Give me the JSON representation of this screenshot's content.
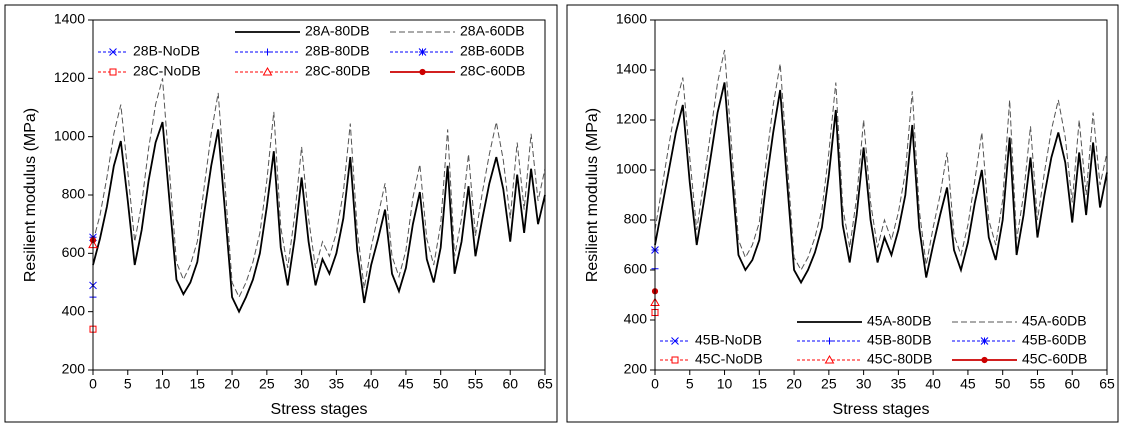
{
  "chart_data": [
    {
      "type": "line",
      "xlabel": "Stress stages",
      "ylabel": "Resilient modulus (MPa)",
      "xlim": [
        0,
        65
      ],
      "xticks": [
        0,
        5,
        10,
        15,
        20,
        25,
        30,
        35,
        40,
        45,
        50,
        55,
        60,
        65
      ],
      "ylim": [
        200,
        1400
      ],
      "yticks": [
        200,
        400,
        600,
        800,
        1000,
        1200,
        1400
      ],
      "legend_position": "top",
      "series": [
        {
          "name": "28A-80DB",
          "color": "#000000",
          "dash": false,
          "marker": "none",
          "x": [
            0,
            1,
            2,
            3,
            4,
            5,
            6,
            7,
            8,
            9,
            10,
            11,
            12,
            13,
            14,
            15,
            16,
            17,
            18,
            19,
            20,
            21,
            22,
            23,
            24,
            25,
            26,
            27,
            28,
            29,
            30,
            31,
            32,
            33,
            34,
            35,
            36,
            37,
            38,
            39,
            40,
            41,
            42,
            43,
            44,
            45,
            46,
            47,
            48,
            49,
            50,
            51,
            52,
            53,
            54,
            55,
            56,
            57,
            58,
            59,
            60,
            61,
            62,
            63,
            64,
            65
          ],
          "values": [
            560,
            650,
            760,
            900,
            985,
            780,
            560,
            680,
            850,
            980,
            1050,
            780,
            510,
            460,
            500,
            570,
            740,
            900,
            1025,
            740,
            450,
            400,
            450,
            510,
            600,
            760,
            950,
            620,
            490,
            650,
            860,
            640,
            490,
            580,
            530,
            600,
            720,
            930,
            610,
            430,
            560,
            650,
            750,
            530,
            470,
            550,
            700,
            810,
            580,
            500,
            620,
            900,
            530,
            640,
            830,
            590,
            720,
            840,
            930,
            820,
            640,
            870,
            670,
            890,
            700,
            800
          ]
        },
        {
          "name": "28A-60DB",
          "color": "#555555",
          "dash": true,
          "marker": "none",
          "x": [
            0,
            1,
            2,
            3,
            4,
            5,
            6,
            7,
            8,
            9,
            10,
            11,
            12,
            13,
            14,
            15,
            16,
            17,
            18,
            19,
            20,
            21,
            22,
            23,
            24,
            25,
            26,
            27,
            28,
            29,
            30,
            31,
            32,
            33,
            34,
            35,
            36,
            37,
            38,
            39,
            40,
            41,
            42,
            43,
            44,
            45,
            46,
            47,
            48,
            49,
            50,
            51,
            52,
            53,
            54,
            55,
            56,
            57,
            58,
            59,
            60,
            61,
            62,
            63,
            64,
            65
          ],
          "values": [
            640,
            730,
            860,
            1010,
            1110,
            880,
            640,
            770,
            960,
            1110,
            1200,
            880,
            570,
            510,
            560,
            640,
            830,
            1010,
            1150,
            830,
            500,
            450,
            500,
            570,
            670,
            850,
            1085,
            690,
            550,
            730,
            965,
            720,
            550,
            640,
            590,
            670,
            810,
            1045,
            680,
            480,
            620,
            730,
            840,
            590,
            520,
            610,
            790,
            905,
            650,
            560,
            700,
            1025,
            590,
            720,
            940,
            660,
            810,
            940,
            1050,
            920,
            720,
            980,
            750,
            1010,
            780,
            890
          ]
        },
        {
          "name": "28B-NoDB",
          "color": "#0000ff",
          "dash": true,
          "marker": "x",
          "x": [
            0
          ],
          "values": [
            490
          ]
        },
        {
          "name": "28B-80DB",
          "color": "#0000ff",
          "dash": true,
          "marker": "plus",
          "x": [
            0
          ],
          "values": [
            450
          ]
        },
        {
          "name": "28B-60DB",
          "color": "#0000ff",
          "dash": true,
          "marker": "star",
          "x": [
            0
          ],
          "values": [
            655
          ]
        },
        {
          "name": "28C-NoDB",
          "color": "#ff0000",
          "dash": true,
          "marker": "square",
          "x": [
            0
          ],
          "values": [
            340
          ]
        },
        {
          "name": "28C-80DB",
          "color": "#ff0000",
          "dash": true,
          "marker": "triangle",
          "x": [
            0
          ],
          "values": [
            630
          ]
        },
        {
          "name": "28C-60DB",
          "color": "#cc0000",
          "dash": false,
          "marker": "circle",
          "x": [
            0
          ],
          "values": [
            645
          ]
        }
      ]
    },
    {
      "type": "line",
      "xlabel": "Stress stages",
      "ylabel": "Resilient modulus (MPa)",
      "xlim": [
        0,
        65
      ],
      "xticks": [
        0,
        5,
        10,
        15,
        20,
        25,
        30,
        35,
        40,
        45,
        50,
        55,
        60,
        65
      ],
      "ylim": [
        200,
        1600
      ],
      "yticks": [
        200,
        400,
        600,
        800,
        1000,
        1200,
        1400,
        1600
      ],
      "legend_position": "bottom",
      "series": [
        {
          "name": "45A-80DB",
          "color": "#000000",
          "dash": false,
          "marker": "none",
          "x": [
            0,
            1,
            2,
            3,
            4,
            5,
            6,
            7,
            8,
            9,
            10,
            11,
            12,
            13,
            14,
            15,
            16,
            17,
            18,
            19,
            20,
            21,
            22,
            23,
            24,
            25,
            26,
            27,
            28,
            29,
            30,
            31,
            32,
            33,
            34,
            35,
            36,
            37,
            38,
            39,
            40,
            41,
            42,
            43,
            44,
            45,
            46,
            47,
            48,
            49,
            50,
            51,
            52,
            53,
            54,
            55,
            56,
            57,
            58,
            59,
            60,
            61,
            62,
            63,
            64,
            65
          ],
          "values": [
            700,
            850,
            1000,
            1150,
            1260,
            950,
            700,
            870,
            1050,
            1230,
            1350,
            1000,
            660,
            600,
            640,
            720,
            950,
            1150,
            1320,
            950,
            600,
            550,
            600,
            670,
            770,
            980,
            1240,
            780,
            630,
            820,
            1090,
            800,
            630,
            730,
            660,
            760,
            900,
            1180,
            770,
            570,
            700,
            820,
            930,
            680,
            600,
            710,
            870,
            1000,
            730,
            640,
            800,
            1130,
            660,
            820,
            1050,
            730,
            900,
            1050,
            1150,
            1030,
            790,
            1070,
            820,
            1110,
            850,
            990
          ]
        },
        {
          "name": "45A-60DB",
          "color": "#555555",
          "dash": true,
          "marker": "none",
          "x": [
            0,
            1,
            2,
            3,
            4,
            5,
            6,
            7,
            8,
            9,
            10,
            11,
            12,
            13,
            14,
            15,
            16,
            17,
            18,
            19,
            20,
            21,
            22,
            23,
            24,
            25,
            26,
            27,
            28,
            29,
            30,
            31,
            32,
            33,
            34,
            35,
            36,
            37,
            38,
            39,
            40,
            41,
            42,
            43,
            44,
            45,
            46,
            47,
            48,
            49,
            50,
            51,
            52,
            53,
            54,
            55,
            56,
            57,
            58,
            59,
            60,
            61,
            62,
            63,
            64,
            65
          ],
          "values": [
            760,
            930,
            1100,
            1260,
            1370,
            1050,
            760,
            950,
            1150,
            1350,
            1480,
            1100,
            720,
            650,
            700,
            790,
            1040,
            1260,
            1425,
            1040,
            650,
            600,
            650,
            730,
            840,
            1070,
            1350,
            850,
            690,
            890,
            1200,
            870,
            690,
            800,
            720,
            830,
            990,
            1315,
            840,
            620,
            770,
            900,
            1070,
            740,
            660,
            780,
            960,
            1150,
            800,
            700,
            880,
            1280,
            720,
            900,
            1175,
            800,
            990,
            1160,
            1280,
            1130,
            870,
            1200,
            900,
            1230,
            940,
            1070
          ]
        },
        {
          "name": "45B-NoDB",
          "color": "#0000ff",
          "dash": true,
          "marker": "x",
          "x": [
            0
          ],
          "values": [
            430
          ]
        },
        {
          "name": "45B-80DB",
          "color": "#0000ff",
          "dash": true,
          "marker": "plus",
          "x": [
            0
          ],
          "values": [
            605
          ]
        },
        {
          "name": "45B-60DB",
          "color": "#0000ff",
          "dash": true,
          "marker": "star",
          "x": [
            0
          ],
          "values": [
            680
          ]
        },
        {
          "name": "45C-NoDB",
          "color": "#ff0000",
          "dash": true,
          "marker": "square",
          "x": [
            0
          ],
          "values": [
            430
          ]
        },
        {
          "name": "45C-80DB",
          "color": "#ff0000",
          "dash": true,
          "marker": "triangle",
          "x": [
            0
          ],
          "values": [
            470
          ]
        },
        {
          "name": "45C-60DB",
          "color": "#cc0000",
          "dash": false,
          "marker": "circle",
          "x": [
            0
          ],
          "values": [
            515
          ]
        }
      ]
    }
  ]
}
